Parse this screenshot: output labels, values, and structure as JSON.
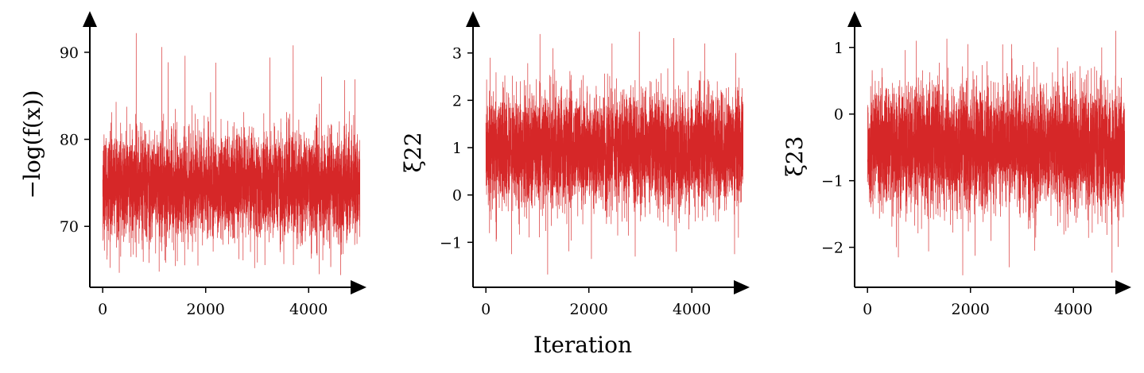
{
  "chart_data": [
    {
      "type": "line",
      "xlabel": "",
      "ylabel": "−log(f(x))",
      "xlim": [
        -250,
        5000
      ],
      "ylim": [
        63,
        94
      ],
      "xticks": [
        0,
        2000,
        4000
      ],
      "xtick_labels": [
        "0",
        "2000",
        "4000"
      ],
      "yticks": [
        70,
        80,
        90
      ],
      "ytick_labels": [
        "70",
        "80",
        "90"
      ],
      "grid": false,
      "series": [
        {
          "color": "#d62728",
          "n_points": 5000,
          "center": 74.7,
          "typical_band": [
            69.5,
            82
          ],
          "min": 64.4,
          "max": 92.2,
          "spikes": [
            [
              650,
              92.2
            ],
            [
              260,
              84.3
            ],
            [
              1150,
              90.6
            ],
            [
              1600,
              89.6
            ],
            [
              2200,
              88.8
            ],
            [
              3250,
              89.4
            ],
            [
              3700,
              90.8
            ],
            [
              4700,
              86.8
            ],
            [
              4250,
              87.2
            ],
            [
              4900,
              86.9
            ],
            [
              4620,
              64.4
            ],
            [
              1850,
              65.5
            ],
            [
              2950,
              65.2
            ],
            [
              900,
              65.8
            ],
            [
              4050,
              66.3
            ]
          ]
        }
      ]
    },
    {
      "type": "line",
      "xlabel": "Iteration",
      "ylabel": "ξ22",
      "xlim": [
        -250,
        5000
      ],
      "ylim": [
        -1.95,
        3.75
      ],
      "xticks": [
        0,
        2000,
        4000
      ],
      "xtick_labels": [
        "0",
        "2000",
        "4000"
      ],
      "yticks": [
        -1,
        0,
        1,
        2,
        3
      ],
      "ytick_labels": [
        "−1",
        "0",
        "1",
        "2",
        "3"
      ],
      "grid": false,
      "series": [
        {
          "color": "#d62728",
          "n_points": 5000,
          "center": 0.95,
          "typical_band": [
            -0.25,
            2.2
          ],
          "min": -1.68,
          "max": 3.45,
          "spikes": [
            [
              80,
              2.9
            ],
            [
              1050,
              3.4
            ],
            [
              1300,
              3.1
            ],
            [
              2450,
              3.2
            ],
            [
              2980,
              3.45
            ],
            [
              4250,
              3.2
            ],
            [
              4850,
              3.0
            ],
            [
              1200,
              -1.68
            ],
            [
              2050,
              -1.35
            ],
            [
              2900,
              -1.3
            ],
            [
              4830,
              -1.25
            ],
            [
              500,
              -1.25
            ],
            [
              3700,
              -1.2
            ]
          ]
        }
      ]
    },
    {
      "type": "line",
      "xlabel": "",
      "ylabel": "ξ23",
      "xlim": [
        -250,
        5000
      ],
      "ylim": [
        -2.6,
        1.45
      ],
      "xticks": [
        0,
        2000,
        4000
      ],
      "xtick_labels": [
        "0",
        "2000",
        "4000"
      ],
      "yticks": [
        -2,
        -1,
        0,
        1
      ],
      "ytick_labels": [
        "−2",
        "−1",
        "0",
        "1"
      ],
      "grid": false,
      "series": [
        {
          "color": "#d62728",
          "n_points": 5000,
          "center": -0.5,
          "typical_band": [
            -1.45,
            0.45
          ],
          "min": -2.42,
          "max": 1.25,
          "spikes": [
            [
              4820,
              1.25
            ],
            [
              950,
              1.1
            ],
            [
              1950,
              1.05
            ],
            [
              2800,
              1.05
            ],
            [
              3700,
              1.0
            ],
            [
              4550,
              1.0
            ],
            [
              1850,
              -2.42
            ],
            [
              4750,
              -2.38
            ],
            [
              2750,
              -2.3
            ],
            [
              600,
              -2.15
            ],
            [
              3250,
              -2.05
            ]
          ]
        }
      ]
    }
  ]
}
